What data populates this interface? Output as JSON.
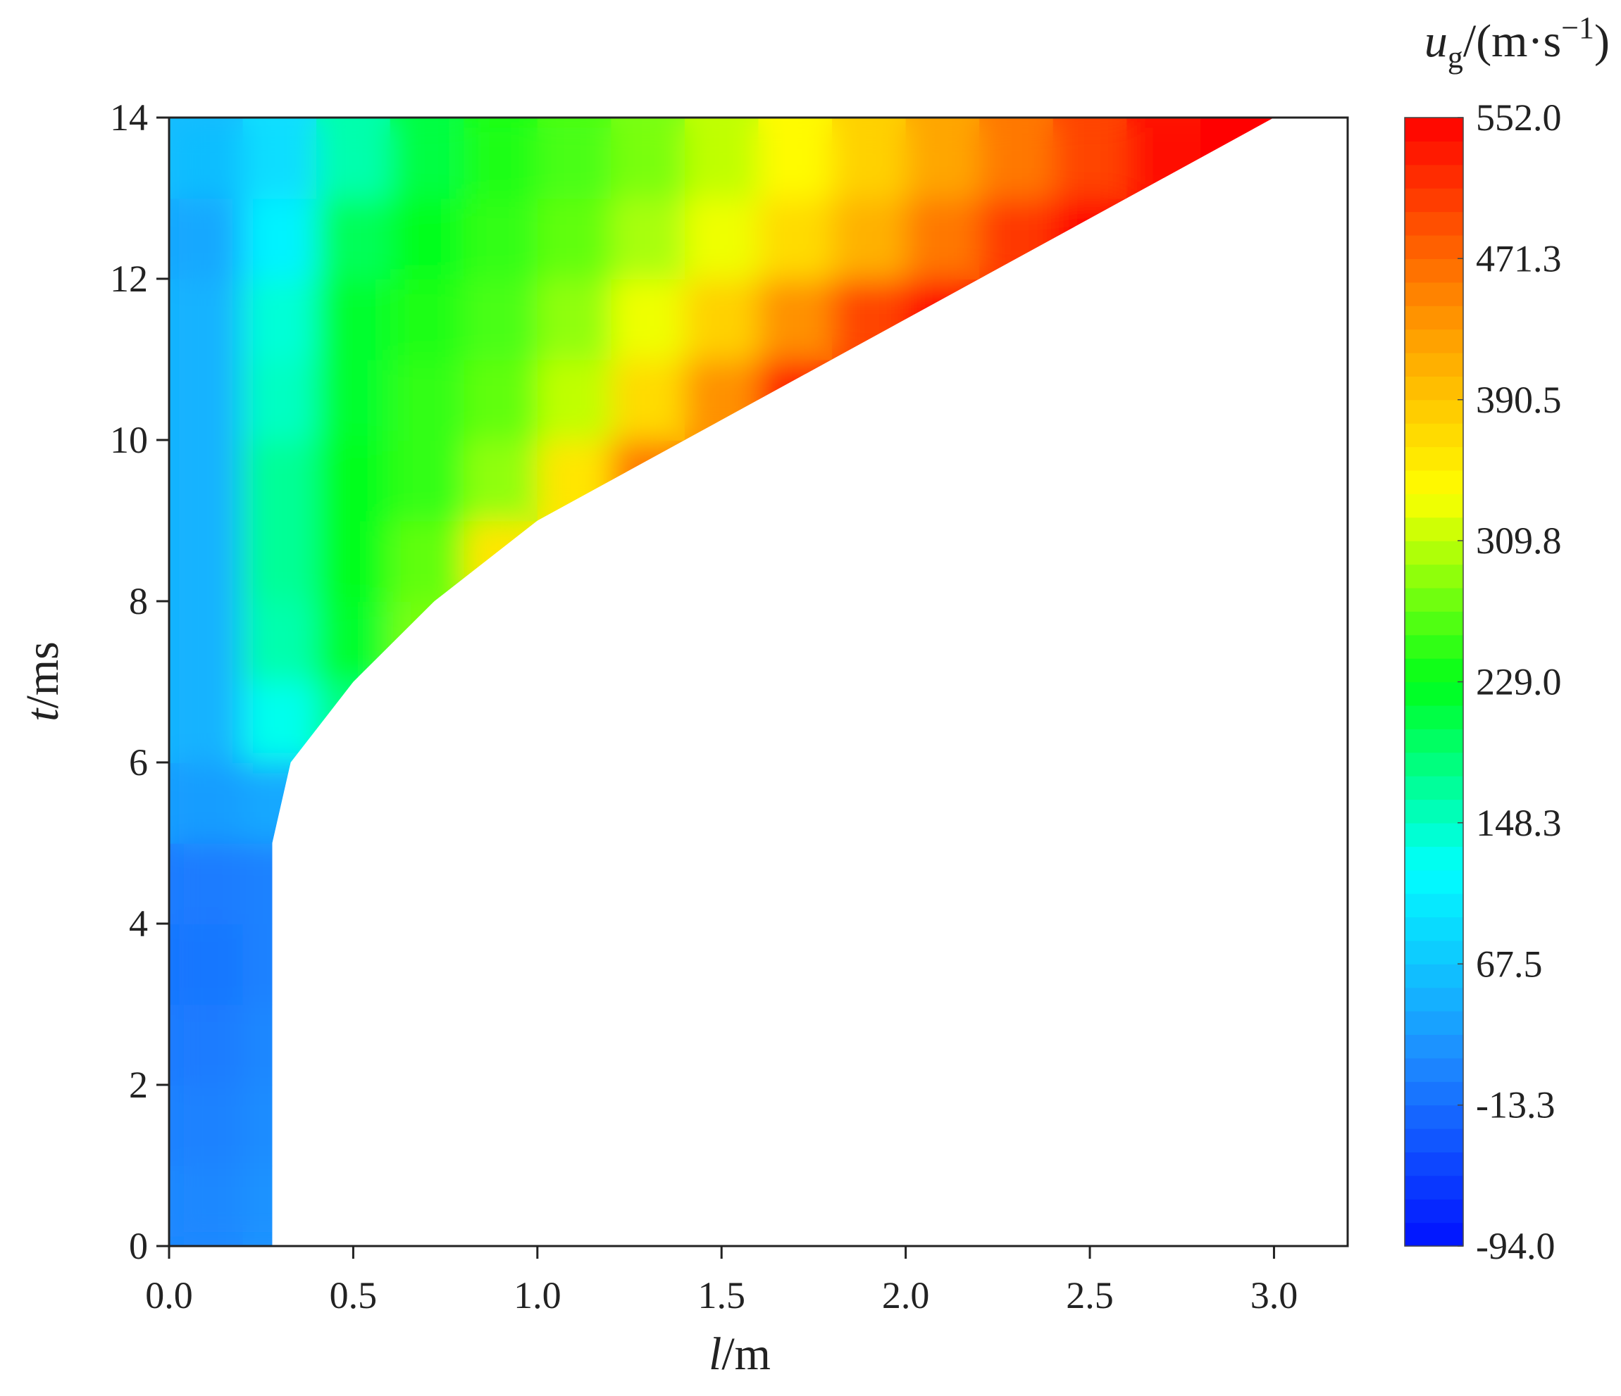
{
  "chart_data": {
    "type": "contour",
    "x_label": {
      "symbol": "l",
      "unit": "/m"
    },
    "y_label": {
      "symbol": "t",
      "unit": "/ms"
    },
    "colorbar_label": {
      "symbol": "u",
      "subscript": "g",
      "unit": "/(m·s",
      "superscript": "−1",
      "close": ")"
    },
    "xlim": [
      0,
      3.2
    ],
    "xticks": [
      {
        "value": 0,
        "label": "0.0"
      },
      0.5,
      {
        "value": 1,
        "label": "1.0"
      },
      1.5,
      {
        "value": 2,
        "label": "2.0"
      },
      2.5,
      {
        "value": 3,
        "label": "3.0"
      }
    ],
    "ylim": [
      0,
      14
    ],
    "yticks": [
      0,
      2,
      4,
      6,
      8,
      10,
      12,
      14
    ],
    "zlim": [
      -94,
      552
    ],
    "zticks": [
      {
        "value": -94,
        "label": "-94.0"
      },
      -13.3,
      67.5,
      148.3,
      {
        "value": 229,
        "label": "229.0"
      },
      309.8,
      390.5,
      471.3,
      {
        "value": 552,
        "label": "552.0"
      }
    ],
    "colormap": [
      "#0010ff",
      "#1e8cff",
      "#00ffff",
      "#00ff1a",
      "#ffff00",
      "#ff8c00",
      "#ff0000"
    ],
    "x": [
      0.1,
      0.3,
      0.5,
      0.7,
      0.9,
      1.1,
      1.3,
      1.5,
      1.7,
      1.9,
      2.1,
      2.3,
      2.5,
      2.7,
      2.9,
      3.1
    ],
    "y": [
      0.5,
      1.5,
      2.5,
      3.5,
      4.5,
      5.5,
      6.5,
      7.5,
      8.5,
      9.5,
      10.5,
      11.5,
      12.5,
      13.5
    ],
    "z": [
      [
        10,
        20,
        null,
        null,
        null,
        null,
        null,
        null,
        null,
        null,
        null,
        null,
        null,
        null,
        null,
        null
      ],
      [
        5,
        15,
        null,
        null,
        null,
        null,
        null,
        null,
        null,
        null,
        null,
        null,
        null,
        null,
        null,
        null
      ],
      [
        0,
        10,
        null,
        null,
        null,
        null,
        null,
        null,
        null,
        null,
        null,
        null,
        null,
        null,
        null,
        null
      ],
      [
        -5,
        5,
        null,
        null,
        null,
        null,
        null,
        null,
        null,
        null,
        null,
        null,
        null,
        null,
        null,
        null
      ],
      [
        0,
        5,
        null,
        null,
        null,
        null,
        null,
        null,
        null,
        null,
        null,
        null,
        null,
        null,
        null,
        null
      ],
      [
        30,
        40,
        null,
        null,
        null,
        null,
        null,
        null,
        null,
        null,
        null,
        null,
        null,
        null,
        null,
        null
      ],
      [
        50,
        130,
        180,
        null,
        null,
        null,
        null,
        null,
        null,
        null,
        null,
        null,
        null,
        null,
        null,
        null
      ],
      [
        50,
        160,
        220,
        280,
        null,
        null,
        null,
        null,
        null,
        null,
        null,
        null,
        null,
        null,
        null,
        null
      ],
      [
        50,
        170,
        230,
        270,
        360,
        null,
        null,
        null,
        null,
        null,
        null,
        null,
        null,
        null,
        null,
        null
      ],
      [
        50,
        170,
        230,
        250,
        290,
        360,
        460,
        null,
        null,
        null,
        null,
        null,
        null,
        null,
        null,
        null
      ],
      [
        50,
        150,
        220,
        250,
        270,
        310,
        370,
        440,
        530,
        null,
        null,
        null,
        null,
        null,
        null,
        null
      ],
      [
        50,
        140,
        220,
        240,
        260,
        290,
        330,
        380,
        440,
        500,
        550,
        null,
        null,
        null,
        null,
        null
      ],
      [
        40,
        110,
        200,
        230,
        250,
        270,
        300,
        330,
        370,
        410,
        460,
        510,
        550,
        null,
        null,
        null
      ],
      [
        60,
        90,
        160,
        210,
        240,
        260,
        280,
        310,
        340,
        380,
        420,
        460,
        500,
        540,
        552,
        null
      ]
    ],
    "front": {
      "t": [
        0,
        5,
        6,
        7,
        8,
        9,
        10,
        11,
        12,
        13,
        14
      ],
      "l": [
        0.28,
        0.28,
        0.33,
        0.5,
        0.72,
        1.0,
        1.4,
        1.8,
        2.2,
        2.6,
        3.0
      ]
    }
  }
}
